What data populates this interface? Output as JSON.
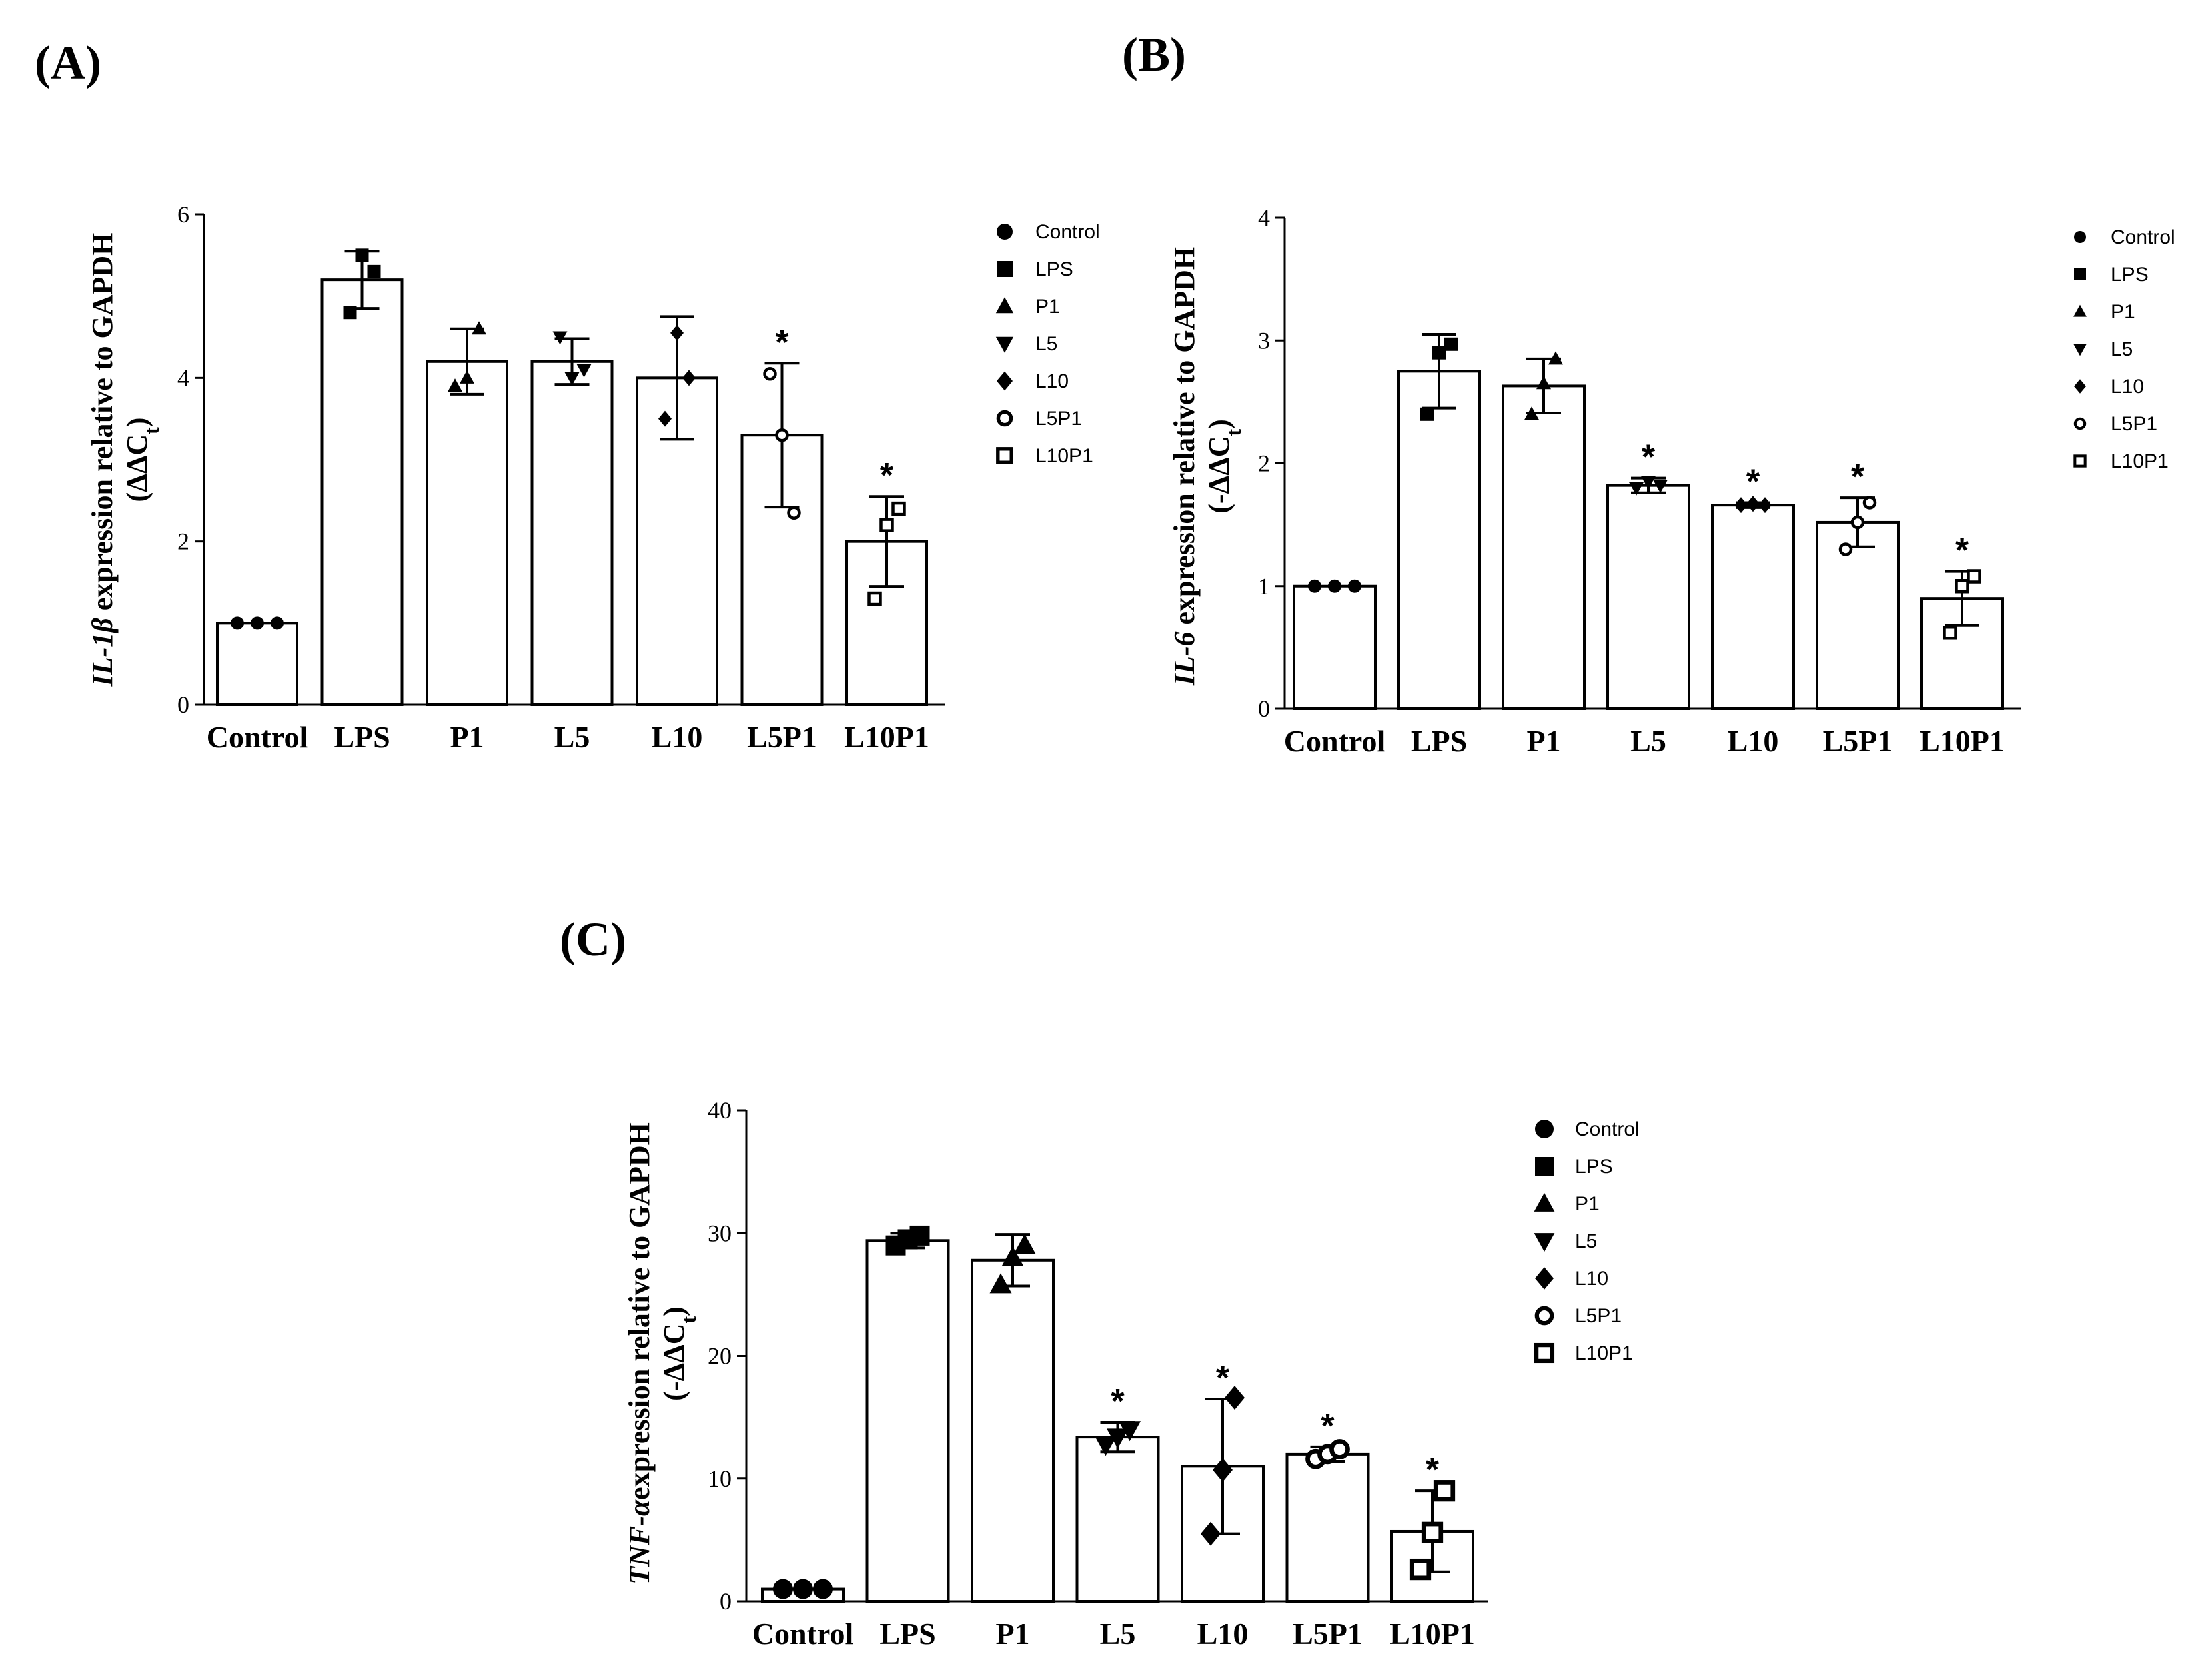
{
  "panel_labels": [
    "(A)",
    "(B)",
    "(C)"
  ],
  "legend_labels": [
    "Control",
    "LPS",
    "P1",
    "L5",
    "L10",
    "L5P1",
    "L10P1"
  ],
  "chart_data": [
    {
      "type": "bar",
      "panel": "(A)",
      "gene": "IL-1β",
      "ylabel_italic": "IL-1β",
      "ylabel_rest": " expression relative to GAPDH",
      "ylabel_line2": "(ΔΔC",
      "ylabel_sub": "t",
      "ylabel_close": ")",
      "categories": [
        "Control",
        "LPS",
        "P1",
        "L5",
        "L10",
        "L5P1",
        "L10P1"
      ],
      "values": [
        1.0,
        5.2,
        4.2,
        4.2,
        4.0,
        3.3,
        2.0
      ],
      "errors": [
        0.0,
        0.35,
        0.4,
        0.28,
        0.75,
        0.88,
        0.55
      ],
      "points": [
        [
          1.0,
          1.0,
          1.0
        ],
        [
          4.8,
          5.5,
          5.3
        ],
        [
          3.9,
          4.0,
          4.6
        ],
        [
          4.5,
          4.0,
          4.1
        ],
        [
          3.5,
          4.55,
          4.0
        ],
        [
          4.05,
          3.3,
          2.35
        ],
        [
          1.3,
          2.2,
          2.4
        ]
      ],
      "significance": [
        "",
        "",
        "",
        "",
        "",
        "*",
        "*"
      ],
      "ylim": [
        0,
        6
      ],
      "yticks": [
        0,
        2,
        4,
        6
      ],
      "legend_position": "right"
    },
    {
      "type": "bar",
      "panel": "(B)",
      "gene": "IL-6",
      "ylabel_italic": "IL-6",
      "ylabel_rest": " expression relative to GAPDH",
      "ylabel_line2": "(-ΔΔC",
      "ylabel_sub": "t",
      "ylabel_close": ")",
      "categories": [
        "Control",
        "LPS",
        "P1",
        "L5",
        "L10",
        "L5P1",
        "L10P1"
      ],
      "values": [
        1.0,
        2.75,
        2.63,
        1.82,
        1.66,
        1.52,
        0.9
      ],
      "errors": [
        0.0,
        0.3,
        0.22,
        0.06,
        0.02,
        0.2,
        0.22
      ],
      "points": [
        [
          1.0,
          1.0,
          1.0
        ],
        [
          2.4,
          2.9,
          2.97
        ],
        [
          2.4,
          2.65,
          2.85
        ],
        [
          1.8,
          1.85,
          1.82
        ],
        [
          1.66,
          1.67,
          1.66
        ],
        [
          1.3,
          1.52,
          1.68
        ],
        [
          0.62,
          1.0,
          1.08
        ]
      ],
      "significance": [
        "",
        "",
        "",
        "*",
        "*",
        "*",
        "*"
      ],
      "ylim": [
        0,
        4
      ],
      "yticks": [
        0,
        1,
        2,
        3,
        4
      ],
      "legend_position": "right"
    },
    {
      "type": "bar",
      "panel": "(C)",
      "gene": "TNF-α",
      "ylabel_italic": "TNF-α",
      "ylabel_rest": "expression relative to GAPDH",
      "ylabel_line2": "(-ΔΔC",
      "ylabel_sub": "t",
      "ylabel_close": ")",
      "categories": [
        "Control",
        "LPS",
        "P1",
        "L5",
        "L10",
        "L5P1",
        "L10P1"
      ],
      "values": [
        1.0,
        29.4,
        27.8,
        13.4,
        11.0,
        12.0,
        5.7
      ],
      "errors": [
        0.0,
        0.6,
        2.1,
        1.2,
        5.5,
        0.6,
        3.3
      ],
      "points": [
        [
          1.0,
          1.0,
          1.0
        ],
        [
          29.0,
          29.5,
          29.8
        ],
        [
          25.8,
          28.0,
          29.0
        ],
        [
          12.8,
          13.4,
          14.0
        ],
        [
          5.5,
          10.7,
          16.6
        ],
        [
          11.6,
          12.0,
          12.4
        ],
        [
          2.6,
          5.6,
          9.0
        ]
      ],
      "significance": [
        "",
        "",
        "",
        "*",
        "*",
        "*",
        "*"
      ],
      "ylim": [
        0,
        40
      ],
      "yticks": [
        0,
        10,
        20,
        30,
        40
      ],
      "legend_position": "right"
    }
  ]
}
